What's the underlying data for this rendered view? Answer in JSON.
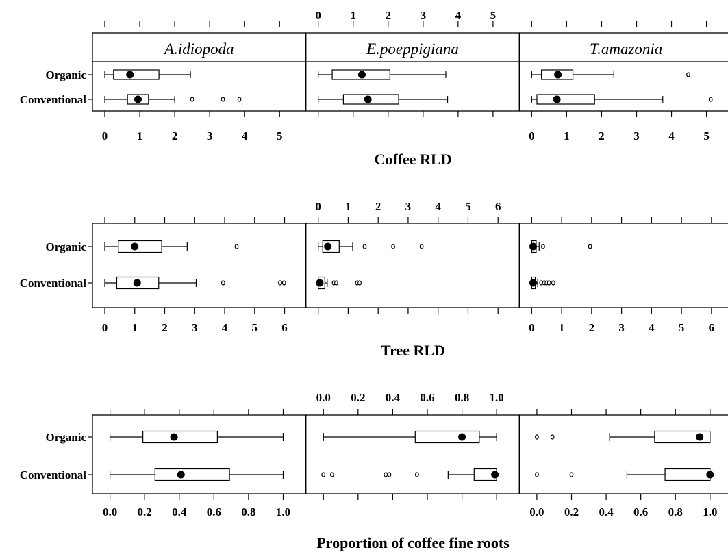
{
  "strips": [
    "A.idiopoda",
    "E.poeppigiana",
    "T.amazonia"
  ],
  "groups": [
    "Organic",
    "Conventional"
  ],
  "chart_data": [
    {
      "type": "box",
      "xlabel": "Coffee RLD",
      "xlim": [
        0,
        5.4
      ],
      "ticks": [
        0,
        1,
        2,
        3,
        4,
        5
      ],
      "tick_labels": [
        "0",
        "1",
        "2",
        "3",
        "4",
        "5"
      ],
      "boxes": [
        {
          "panel": "A.idiopoda",
          "group": "Organic",
          "whisker_low": 0.0,
          "q1": 0.25,
          "median": 0.72,
          "q3": 1.55,
          "whisker_high": 2.45,
          "outliers": []
        },
        {
          "panel": "A.idiopoda",
          "group": "Conventional",
          "whisker_low": 0.0,
          "q1": 0.65,
          "median": 0.95,
          "q3": 1.25,
          "whisker_high": 2.0,
          "outliers": [
            2.5,
            3.38,
            3.85
          ]
        },
        {
          "panel": "E.poeppigiana",
          "group": "Organic",
          "whisker_low": 0.0,
          "q1": 0.4,
          "median": 1.25,
          "q3": 2.05,
          "whisker_high": 3.65,
          "outliers": []
        },
        {
          "panel": "E.poeppigiana",
          "group": "Conventional",
          "whisker_low": 0.0,
          "q1": 0.72,
          "median": 1.42,
          "q3": 2.3,
          "whisker_high": 3.7,
          "outliers": []
        },
        {
          "panel": "T.amazonia",
          "group": "Organic",
          "whisker_low": 0.0,
          "q1": 0.28,
          "median": 0.75,
          "q3": 1.18,
          "whisker_high": 2.35,
          "outliers": [
            4.48
          ]
        },
        {
          "panel": "T.amazonia",
          "group": "Conventional",
          "whisker_low": 0.0,
          "q1": 0.15,
          "median": 0.72,
          "q3": 1.8,
          "whisker_high": 3.75,
          "outliers": [
            5.12
          ]
        }
      ]
    },
    {
      "type": "box",
      "xlabel": "Tree RLD",
      "xlim": [
        0,
        6.3
      ],
      "ticks": [
        0,
        1,
        2,
        3,
        4,
        5,
        6
      ],
      "tick_labels": [
        "0",
        "1",
        "2",
        "3",
        "4",
        "5",
        "6"
      ],
      "boxes": [
        {
          "panel": "A.idiopoda",
          "group": "Organic",
          "whisker_low": 0.0,
          "q1": 0.45,
          "median": 1.0,
          "q3": 1.9,
          "whisker_high": 2.75,
          "outliers": [
            4.4
          ]
        },
        {
          "panel": "A.idiopoda",
          "group": "Conventional",
          "whisker_low": 0.0,
          "q1": 0.4,
          "median": 1.08,
          "q3": 1.8,
          "whisker_high": 3.05,
          "outliers": [
            3.95,
            5.85,
            5.98
          ]
        },
        {
          "panel": "E.poeppigiana",
          "group": "Organic",
          "whisker_low": 0.0,
          "q1": 0.15,
          "median": 0.32,
          "q3": 0.7,
          "whisker_high": 1.15,
          "outliers": [
            1.55,
            2.5,
            3.45
          ]
        },
        {
          "panel": "E.poeppigiana",
          "group": "Conventional",
          "whisker_low": 0.0,
          "q1": 0.0,
          "median": 0.05,
          "q3": 0.22,
          "whisker_high": 0.3,
          "outliers": [
            0.52,
            0.6,
            1.3,
            1.38
          ]
        },
        {
          "panel": "T.amazonia",
          "group": "Organic",
          "whisker_low": 0.0,
          "q1": 0.0,
          "median": 0.05,
          "q3": 0.15,
          "whisker_high": 0.25,
          "outliers": [
            0.38,
            1.95
          ]
        },
        {
          "panel": "T.amazonia",
          "group": "Conventional",
          "whisker_low": 0.0,
          "q1": 0.0,
          "median": 0.05,
          "q3": 0.12,
          "whisker_high": 0.2,
          "outliers": [
            0.32,
            0.42,
            0.5,
            0.58,
            0.72
          ]
        }
      ]
    },
    {
      "type": "box",
      "xlabel": "Proportion of coffee fine roots",
      "xlim": [
        -0.03,
        1.06
      ],
      "ticks": [
        0.0,
        0.2,
        0.4,
        0.6,
        0.8,
        1.0
      ],
      "tick_labels": [
        "0.0",
        "0.2",
        "0.4",
        "0.6",
        "0.8",
        "1.0"
      ],
      "boxes": [
        {
          "panel": "A.idiopoda",
          "group": "Organic",
          "whisker_low": 0.0,
          "q1": 0.19,
          "median": 0.37,
          "q3": 0.62,
          "whisker_high": 1.0,
          "outliers": []
        },
        {
          "panel": "A.idiopoda",
          "group": "Conventional",
          "whisker_low": 0.0,
          "q1": 0.26,
          "median": 0.41,
          "q3": 0.69,
          "whisker_high": 1.0,
          "outliers": []
        },
        {
          "panel": "E.poeppigiana",
          "group": "Organic",
          "whisker_low": 0.0,
          "q1": 0.53,
          "median": 0.8,
          "q3": 0.9,
          "whisker_high": 1.0,
          "outliers": []
        },
        {
          "panel": "E.poeppigiana",
          "group": "Conventional",
          "whisker_low": 0.72,
          "q1": 0.87,
          "median": 0.99,
          "q3": 1.0,
          "whisker_high": 1.0,
          "outliers": [
            0.0,
            0.05,
            0.36,
            0.38,
            0.54
          ]
        },
        {
          "panel": "T.amazonia",
          "group": "Organic",
          "whisker_low": 0.42,
          "q1": 0.68,
          "median": 0.94,
          "q3": 1.0,
          "whisker_high": 1.0,
          "outliers": [
            0.0,
            0.09
          ]
        },
        {
          "panel": "T.amazonia",
          "group": "Conventional",
          "whisker_low": 0.52,
          "q1": 0.74,
          "median": 1.0,
          "q3": 1.0,
          "whisker_high": 1.0,
          "outliers": [
            0.0,
            0.2
          ]
        }
      ]
    }
  ]
}
